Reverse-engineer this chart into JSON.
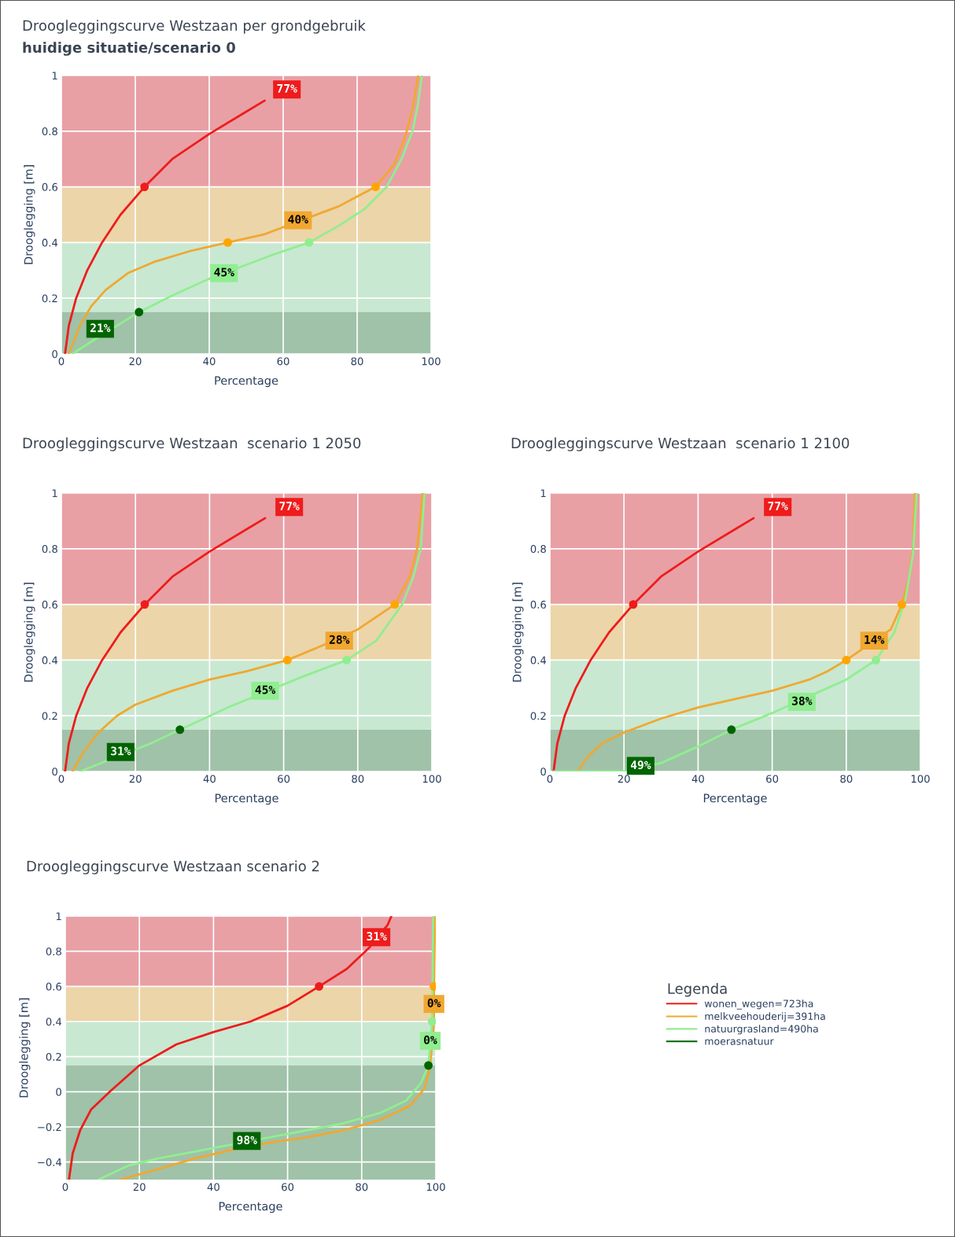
{
  "chart_data": [
    {
      "type": "line",
      "title": "Droogleggingscurve Westzaan per grondgebruik",
      "subtitle": "huidige situatie/scenario 0",
      "xlabel": "Percentage",
      "ylabel": "Drooglegging [m]",
      "xlim": [
        0,
        100
      ],
      "xticks": [
        0,
        20,
        40,
        60,
        80,
        100
      ],
      "ylim": [
        0,
        1
      ],
      "yticks": [
        0,
        0.2,
        0.4,
        0.6,
        0.8,
        1
      ],
      "grid": true,
      "legend": false,
      "bands": [
        {
          "axis": "y",
          "from": 0.6,
          "to": 1,
          "color": "#e8a0a5"
        },
        {
          "axis": "y",
          "from": 0.4,
          "to": 0.6,
          "color": "#ecd5a9"
        },
        {
          "axis": "y",
          "from": 0.15,
          "to": 0.4,
          "color": "#c8e8d2"
        },
        {
          "axis": "y",
          "from": 0,
          "to": 0.15,
          "color": "#9fc2a8"
        }
      ],
      "series": [
        {
          "marker": "none",
          "color": "#ee1c1c",
          "x": [
            1,
            2,
            4,
            7,
            11,
            16,
            22.5,
            30,
            40,
            50,
            55
          ],
          "values": [
            0,
            0.1,
            0.2,
            0.3,
            0.4,
            0.5,
            0.6,
            0.7,
            0.79,
            0.87,
            0.91
          ]
        },
        {
          "marker": "none",
          "color": "#f0a830",
          "x": [
            2,
            5,
            8,
            12,
            18,
            25,
            35,
            45,
            55,
            75,
            85,
            90,
            93,
            95,
            96.5
          ],
          "values": [
            0,
            0.1,
            0.17,
            0.23,
            0.29,
            0.33,
            0.37,
            0.4,
            0.43,
            0.53,
            0.6,
            0.68,
            0.78,
            0.88,
            1
          ]
        },
        {
          "marker": "none",
          "color": "#90ee90",
          "x": [
            3,
            10,
            21,
            30,
            40,
            50,
            58,
            67,
            75,
            82,
            88,
            92,
            95,
            96.5,
            97.5
          ],
          "values": [
            0,
            0.06,
            0.15,
            0.21,
            0.27,
            0.32,
            0.36,
            0.4,
            0.46,
            0.52,
            0.6,
            0.7,
            0.8,
            0.9,
            1
          ]
        },
        {
          "type": "scatter",
          "marker": "circle",
          "color": "#006400",
          "x": [
            21
          ],
          "values": [
            0.15
          ]
        },
        {
          "type": "scatter",
          "marker": "circle",
          "color": "#ee1c1c",
          "x": [
            22.5
          ],
          "values": [
            0.6
          ]
        },
        {
          "type": "scatter",
          "marker": "circle",
          "color": "#ffa500",
          "x": [
            45,
            85
          ],
          "values": [
            0.4,
            0.6
          ]
        },
        {
          "type": "scatter",
          "marker": "circle",
          "color": "#90ee90",
          "x": [
            67
          ],
          "values": [
            0.4
          ]
        }
      ],
      "annotations": [
        {
          "text": "77%",
          "x": 61,
          "y": 0.95
        },
        {
          "text": "40%",
          "x": 64,
          "y": 0.48
        },
        {
          "text": "45%",
          "x": 44,
          "y": 0.29
        },
        {
          "text": "21%",
          "x": 10.5,
          "y": 0.09
        }
      ]
    },
    {
      "type": "line",
      "title": "Droogleggingscurve Westzaan  scenario 1 2050",
      "xlabel": "Percentage",
      "ylabel": "Drooglegging [m]",
      "xlim": [
        0,
        100
      ],
      "xticks": [
        0,
        20,
        40,
        60,
        80,
        100
      ],
      "ylim": [
        0,
        1
      ],
      "yticks": [
        0,
        0.2,
        0.4,
        0.6,
        0.8,
        1
      ],
      "grid": true,
      "legend": false,
      "bands": [
        {
          "axis": "y",
          "from": 0.6,
          "to": 1,
          "color": "#e8a0a5"
        },
        {
          "axis": "y",
          "from": 0.4,
          "to": 0.6,
          "color": "#ecd5a9"
        },
        {
          "axis": "y",
          "from": 0.15,
          "to": 0.4,
          "color": "#c8e8d2"
        },
        {
          "axis": "y",
          "from": 0,
          "to": 0.15,
          "color": "#9fc2a8"
        }
      ],
      "series": [
        {
          "marker": "none",
          "color": "#ee1c1c",
          "x": [
            1,
            2,
            4,
            7,
            11,
            16,
            22.5,
            30,
            40,
            50,
            55
          ],
          "values": [
            0,
            0.1,
            0.2,
            0.3,
            0.4,
            0.5,
            0.6,
            0.7,
            0.79,
            0.87,
            0.91
          ]
        },
        {
          "marker": "none",
          "color": "#f0a830",
          "x": [
            3,
            6,
            10,
            15,
            20,
            30,
            40,
            50,
            61,
            70,
            80,
            90,
            94,
            96,
            97.5
          ],
          "values": [
            0,
            0.07,
            0.14,
            0.2,
            0.24,
            0.29,
            0.33,
            0.36,
            0.4,
            0.45,
            0.51,
            0.6,
            0.7,
            0.8,
            1
          ]
        },
        {
          "marker": "none",
          "color": "#90ee90",
          "x": [
            5,
            24,
            32,
            45,
            65,
            77,
            85,
            92,
            95,
            97,
            98
          ],
          "values": [
            0,
            0.1,
            0.15,
            0.23,
            0.34,
            0.4,
            0.47,
            0.6,
            0.7,
            0.8,
            1
          ]
        },
        {
          "type": "scatter",
          "marker": "circle",
          "color": "#006400",
          "x": [
            32
          ],
          "values": [
            0.15
          ]
        },
        {
          "type": "scatter",
          "marker": "circle",
          "color": "#ee1c1c",
          "x": [
            22.5
          ],
          "values": [
            0.6
          ]
        },
        {
          "type": "scatter",
          "marker": "circle",
          "color": "#ffa500",
          "x": [
            61,
            90
          ],
          "values": [
            0.4,
            0.6
          ]
        },
        {
          "type": "scatter",
          "marker": "circle",
          "color": "#90ee90",
          "x": [
            77
          ],
          "values": [
            0.4
          ]
        }
      ],
      "annotations": [
        {
          "text": "77%",
          "x": 61.5,
          "y": 0.95
        },
        {
          "text": "28%",
          "x": 75,
          "y": 0.47
        },
        {
          "text": "45%",
          "x": 55,
          "y": 0.29
        },
        {
          "text": "31%",
          "x": 16,
          "y": 0.07
        }
      ]
    },
    {
      "type": "line",
      "title": "Droogleggingscurve Westzaan  scenario 1 2100",
      "xlabel": "Percentage",
      "ylabel": "Drooglegging [m]",
      "xlim": [
        0,
        100
      ],
      "xticks": [
        0,
        20,
        40,
        60,
        80,
        100
      ],
      "ylim": [
        0,
        1
      ],
      "yticks": [
        0,
        0.2,
        0.4,
        0.6,
        0.8,
        1
      ],
      "grid": true,
      "legend": false,
      "bands": [
        {
          "axis": "y",
          "from": 0.6,
          "to": 1,
          "color": "#e8a0a5"
        },
        {
          "axis": "y",
          "from": 0.4,
          "to": 0.6,
          "color": "#ecd5a9"
        },
        {
          "axis": "y",
          "from": 0.15,
          "to": 0.4,
          "color": "#c8e8d2"
        },
        {
          "axis": "y",
          "from": 0,
          "to": 0.15,
          "color": "#9fc2a8"
        }
      ],
      "series": [
        {
          "marker": "none",
          "color": "#ee1c1c",
          "x": [
            1,
            2,
            4,
            7,
            11,
            16,
            22.5,
            30,
            40,
            50,
            55
          ],
          "values": [
            0,
            0.1,
            0.2,
            0.3,
            0.4,
            0.5,
            0.6,
            0.7,
            0.79,
            0.87,
            0.91
          ]
        },
        {
          "marker": "none",
          "color": "#f0a830",
          "x": [
            7.5,
            10,
            14,
            20,
            30,
            40,
            50,
            60,
            70,
            75,
            80,
            92,
            95,
            97,
            98,
            98.5
          ],
          "values": [
            0,
            0.05,
            0.1,
            0.14,
            0.19,
            0.23,
            0.26,
            0.29,
            0.33,
            0.36,
            0.4,
            0.51,
            0.6,
            0.7,
            0.8,
            1
          ]
        },
        {
          "marker": "none",
          "color": "#90ee90",
          "x": [
            1,
            20,
            30,
            40,
            49,
            60,
            80,
            88,
            93,
            96,
            98,
            99
          ],
          "values": [
            0,
            0,
            0.03,
            0.09,
            0.15,
            0.21,
            0.33,
            0.4,
            0.5,
            0.62,
            0.78,
            1
          ]
        },
        {
          "type": "scatter",
          "marker": "circle",
          "color": "#006400",
          "x": [
            49
          ],
          "values": [
            0.15
          ]
        },
        {
          "type": "scatter",
          "marker": "circle",
          "color": "#ee1c1c",
          "x": [
            22.5
          ],
          "values": [
            0.6
          ]
        },
        {
          "type": "scatter",
          "marker": "circle",
          "color": "#ffa500",
          "x": [
            80,
            95
          ],
          "values": [
            0.4,
            0.6
          ]
        },
        {
          "type": "scatter",
          "marker": "circle",
          "color": "#90ee90",
          "x": [
            88
          ],
          "values": [
            0.4
          ]
        }
      ],
      "annotations": [
        {
          "text": "77%",
          "x": 61.5,
          "y": 0.95
        },
        {
          "text": "14%",
          "x": 87.5,
          "y": 0.47
        },
        {
          "text": "38%",
          "x": 68,
          "y": 0.25
        },
        {
          "text": "49%",
          "x": 24.5,
          "y": 0.02
        }
      ]
    },
    {
      "type": "line",
      "title": "Droogleggingscurve Westzaan scenario 2",
      "xlabel": "Percentage",
      "ylabel": "Drooglegging [m]",
      "legend_title": "Legenda",
      "xlim": [
        0,
        100
      ],
      "xticks": [
        0,
        20,
        40,
        60,
        80,
        100
      ],
      "ylim": [
        -0.5,
        1
      ],
      "yticks": [
        {
          "value": -0.4,
          "label": "−0.4"
        },
        {
          "value": -0.2,
          "label": "−0.2"
        },
        0,
        0.2,
        0.4,
        0.6,
        0.8,
        1
      ],
      "grid": true,
      "legend": "right",
      "bands": [
        {
          "axis": "y",
          "from": 0.6,
          "to": 1,
          "color": "#e8a0a5"
        },
        {
          "axis": "y",
          "from": 0.4,
          "to": 0.6,
          "color": "#ecd5a9"
        },
        {
          "axis": "y",
          "from": 0.15,
          "to": 0.4,
          "color": "#c8e8d2"
        },
        {
          "axis": "y",
          "from": -0.5,
          "to": 0.15,
          "color": "#9fc2a8"
        }
      ],
      "series": [
        {
          "marker": "none",
          "name": "wonen_wegen=723ha",
          "color": "#ee1c1c",
          "x": [
            1,
            2,
            4,
            7,
            12,
            20,
            30,
            40,
            50,
            60,
            68.5,
            76,
            82,
            87,
            88
          ],
          "values": [
            -0.5,
            -0.35,
            -0.22,
            -0.1,
            0,
            0.15,
            0.27,
            0.34,
            0.4,
            0.49,
            0.6,
            0.7,
            0.82,
            0.95,
            1
          ]
        },
        {
          "marker": "none",
          "name": "melkveehouderij=391ha",
          "color": "#f0a830",
          "x": [
            15,
            25,
            35,
            45,
            55,
            65,
            75,
            85,
            93,
            97,
            98.5,
            99.5,
            99.5,
            99.8
          ],
          "values": [
            -0.5,
            -0.44,
            -0.38,
            -0.33,
            -0.29,
            -0.26,
            -0.22,
            -0.16,
            -0.08,
            0.02,
            0.15,
            0.4,
            0.6,
            1
          ]
        },
        {
          "marker": "none",
          "name": "natuurgrasland=490ha",
          "color": "#90ee90",
          "x": [
            9,
            17,
            25,
            35,
            45,
            55,
            65,
            75,
            85,
            92,
            96,
            98,
            99,
            99.3
          ],
          "values": [
            -0.5,
            -0.42,
            -0.38,
            -0.34,
            -0.3,
            -0.26,
            -0.22,
            -0.18,
            -0.12,
            -0.05,
            0.05,
            0.15,
            0.4,
            1
          ]
        },
        {
          "type": "scatter",
          "marker": "circle",
          "name": "moerasnatuur",
          "color": "#006400",
          "x": [
            98
          ],
          "values": [
            0.15
          ]
        },
        {
          "type": "scatter",
          "marker": "circle",
          "color": "#ee1c1c",
          "x": [
            68.5
          ],
          "values": [
            0.6
          ]
        },
        {
          "type": "scatter",
          "marker": "circle",
          "color": "#ffa500",
          "x": [
            99.5
          ],
          "values": [
            0.6
          ]
        },
        {
          "type": "scatter",
          "marker": "circle",
          "color": "#90ee90",
          "x": [
            99
          ],
          "values": [
            0.4
          ]
        }
      ],
      "annotations": [
        {
          "text": "31%",
          "x": 84,
          "y": 0.88
        },
        {
          "text": "0%",
          "x": 99.5,
          "y": 0.5
        },
        {
          "text": "0%",
          "x": 98.5,
          "y": 0.29
        },
        {
          "text": "98%",
          "x": 49,
          "y": -0.28
        }
      ]
    }
  ]
}
